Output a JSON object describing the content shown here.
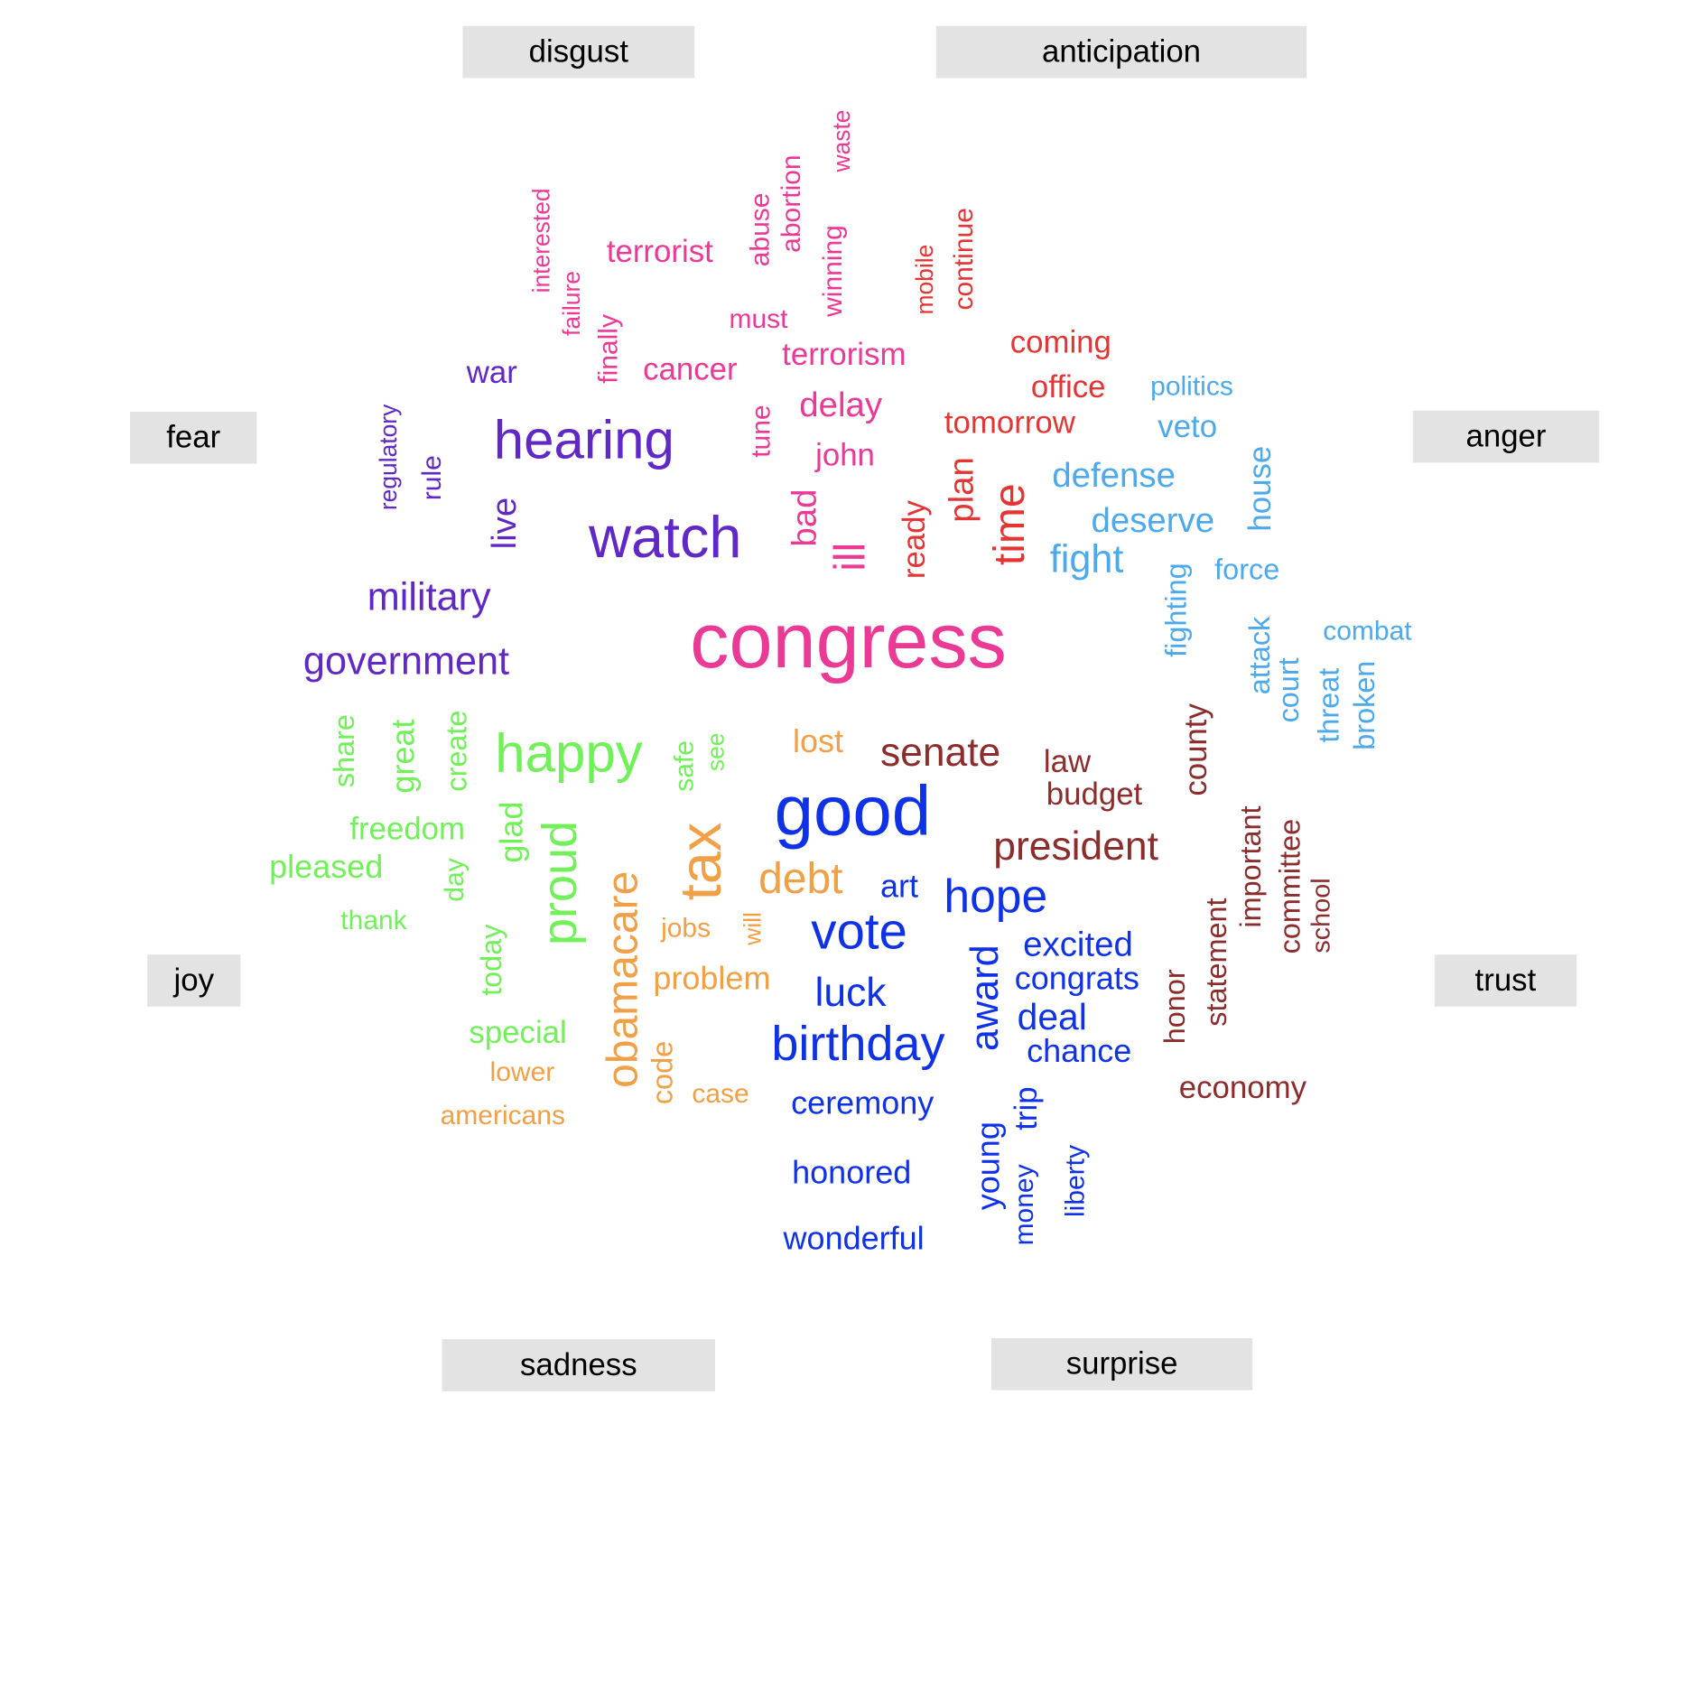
{
  "colors": {
    "disgust": "#ea3a96",
    "anticipation": "#e43535",
    "anger": "#4da9ea",
    "trust": "#8b2d2d",
    "surprise": "#1032e6",
    "sadness": "#f0a046",
    "joy": "#71f05a",
    "fear": "#6028c4",
    "label_bg": "#e3e3e3"
  },
  "labels": {
    "disgust": "disgust",
    "anticipation": "anticipation",
    "fear": "fear",
    "anger": "anger",
    "joy": "joy",
    "trust": "trust",
    "sadness": "sadness",
    "surprise": "surprise"
  },
  "words": [
    {
      "t": "waste",
      "c": "disgust",
      "s": 0.3,
      "v": true
    },
    {
      "t": "abortion",
      "c": "disgust",
      "s": 0.35,
      "v": true
    },
    {
      "t": "abuse",
      "c": "disgust",
      "s": 0.35,
      "v": true
    },
    {
      "t": "interested",
      "c": "disgust",
      "s": 0.3,
      "v": true
    },
    {
      "t": "terrorist",
      "c": "disgust",
      "s": 0.4
    },
    {
      "t": "winning",
      "c": "disgust",
      "s": 0.35,
      "v": true
    },
    {
      "t": "failure",
      "c": "disgust",
      "s": 0.3,
      "v": true
    },
    {
      "t": "must",
      "c": "disgust",
      "s": 0.35
    },
    {
      "t": "finally",
      "c": "disgust",
      "s": 0.35,
      "v": true
    },
    {
      "t": "terrorism",
      "c": "disgust",
      "s": 0.4
    },
    {
      "t": "cancer",
      "c": "disgust",
      "s": 0.4
    },
    {
      "t": "delay",
      "c": "disgust",
      "s": 0.45
    },
    {
      "t": "tune",
      "c": "disgust",
      "s": 0.35,
      "v": true
    },
    {
      "t": "john",
      "c": "disgust",
      "s": 0.4
    },
    {
      "t": "bad",
      "c": "disgust",
      "s": 0.45,
      "v": true
    },
    {
      "t": "ill",
      "c": "disgust",
      "s": 0.55,
      "v": true
    },
    {
      "t": "congress",
      "c": "disgust",
      "s": 1.0
    },
    {
      "t": "mobile",
      "c": "anticipation",
      "s": 0.3,
      "v": true
    },
    {
      "t": "continue",
      "c": "anticipation",
      "s": 0.35,
      "v": true
    },
    {
      "t": "coming",
      "c": "anticipation",
      "s": 0.4
    },
    {
      "t": "office",
      "c": "anticipation",
      "s": 0.4
    },
    {
      "t": "tomorrow",
      "c": "anticipation",
      "s": 0.4
    },
    {
      "t": "plan",
      "c": "anticipation",
      "s": 0.45,
      "v": true
    },
    {
      "t": "ready",
      "c": "anticipation",
      "s": 0.4,
      "v": true
    },
    {
      "t": "time",
      "c": "anticipation",
      "s": 0.55,
      "v": true
    },
    {
      "t": "politics",
      "c": "anger",
      "s": 0.35
    },
    {
      "t": "veto",
      "c": "anger",
      "s": 0.4
    },
    {
      "t": "defense",
      "c": "anger",
      "s": 0.45
    },
    {
      "t": "house",
      "c": "anger",
      "s": 0.4,
      "v": true
    },
    {
      "t": "deserve",
      "c": "anger",
      "s": 0.45
    },
    {
      "t": "fight",
      "c": "anger",
      "s": 0.5
    },
    {
      "t": "force",
      "c": "anger",
      "s": 0.38
    },
    {
      "t": "fighting",
      "c": "anger",
      "s": 0.38,
      "v": true
    },
    {
      "t": "combat",
      "c": "anger",
      "s": 0.35
    },
    {
      "t": "attack",
      "c": "anger",
      "s": 0.38,
      "v": true
    },
    {
      "t": "court",
      "c": "anger",
      "s": 0.38,
      "v": true
    },
    {
      "t": "threat",
      "c": "anger",
      "s": 0.38,
      "v": true
    },
    {
      "t": "broken",
      "c": "anger",
      "s": 0.38,
      "v": true
    },
    {
      "t": "war",
      "c": "fear",
      "s": 0.4
    },
    {
      "t": "regulatory",
      "c": "fear",
      "s": 0.3,
      "v": true
    },
    {
      "t": "rule",
      "c": "fear",
      "s": 0.35,
      "v": true
    },
    {
      "t": "hearing",
      "c": "fear",
      "s": 0.7
    },
    {
      "t": "live",
      "c": "fear",
      "s": 0.45,
      "v": true
    },
    {
      "t": "watch",
      "c": "fear",
      "s": 0.75
    },
    {
      "t": "military",
      "c": "fear",
      "s": 0.5
    },
    {
      "t": "government",
      "c": "fear",
      "s": 0.5
    },
    {
      "t": "share",
      "c": "joy",
      "s": 0.38,
      "v": true
    },
    {
      "t": "great",
      "c": "joy",
      "s": 0.42,
      "v": true
    },
    {
      "t": "create",
      "c": "joy",
      "s": 0.38,
      "v": true
    },
    {
      "t": "happy",
      "c": "joy",
      "s": 0.7
    },
    {
      "t": "safe",
      "c": "joy",
      "s": 0.35,
      "v": true
    },
    {
      "t": "see",
      "c": "joy",
      "s": 0.3,
      "v": true
    },
    {
      "t": "freedom",
      "c": "joy",
      "s": 0.4
    },
    {
      "t": "glad",
      "c": "joy",
      "s": 0.42,
      "v": true
    },
    {
      "t": "pleased",
      "c": "joy",
      "s": 0.42
    },
    {
      "t": "day",
      "c": "joy",
      "s": 0.35,
      "v": true
    },
    {
      "t": "proud",
      "c": "joy",
      "s": 0.62,
      "v": true
    },
    {
      "t": "thank",
      "c": "joy",
      "s": 0.35
    },
    {
      "t": "today",
      "c": "joy",
      "s": 0.38,
      "v": true
    },
    {
      "t": "special",
      "c": "joy",
      "s": 0.4
    },
    {
      "t": "lost",
      "c": "sadness",
      "s": 0.42
    },
    {
      "t": "tax",
      "c": "sadness",
      "s": 0.75,
      "v": true
    },
    {
      "t": "debt",
      "c": "sadness",
      "s": 0.55
    },
    {
      "t": "jobs",
      "c": "sadness",
      "s": 0.35
    },
    {
      "t": "will",
      "c": "sadness",
      "s": 0.3,
      "v": true
    },
    {
      "t": "obamacare",
      "c": "sadness",
      "s": 0.55,
      "v": true
    },
    {
      "t": "problem",
      "c": "sadness",
      "s": 0.42
    },
    {
      "t": "code",
      "c": "sadness",
      "s": 0.38,
      "v": true
    },
    {
      "t": "lower",
      "c": "sadness",
      "s": 0.35
    },
    {
      "t": "case",
      "c": "sadness",
      "s": 0.35
    },
    {
      "t": "americans",
      "c": "sadness",
      "s": 0.35
    },
    {
      "t": "senate",
      "c": "trust",
      "s": 0.52
    },
    {
      "t": "law",
      "c": "trust",
      "s": 0.4
    },
    {
      "t": "county",
      "c": "trust",
      "s": 0.4,
      "v": true
    },
    {
      "t": "budget",
      "c": "trust",
      "s": 0.4
    },
    {
      "t": "president",
      "c": "trust",
      "s": 0.52
    },
    {
      "t": "important",
      "c": "trust",
      "s": 0.38,
      "v": true
    },
    {
      "t": "committee",
      "c": "trust",
      "s": 0.38,
      "v": true
    },
    {
      "t": "school",
      "c": "trust",
      "s": 0.33,
      "v": true
    },
    {
      "t": "statement",
      "c": "trust",
      "s": 0.38,
      "v": true
    },
    {
      "t": "honor",
      "c": "trust",
      "s": 0.38,
      "v": true
    },
    {
      "t": "economy",
      "c": "trust",
      "s": 0.4
    },
    {
      "t": "good",
      "c": "surprise",
      "s": 0.9
    },
    {
      "t": "art",
      "c": "surprise",
      "s": 0.42
    },
    {
      "t": "hope",
      "c": "surprise",
      "s": 0.6
    },
    {
      "t": "vote",
      "c": "surprise",
      "s": 0.65
    },
    {
      "t": "excited",
      "c": "surprise",
      "s": 0.45
    },
    {
      "t": "congrats",
      "c": "surprise",
      "s": 0.42
    },
    {
      "t": "luck",
      "c": "surprise",
      "s": 0.52
    },
    {
      "t": "award",
      "c": "surprise",
      "s": 0.5,
      "v": true
    },
    {
      "t": "deal",
      "c": "surprise",
      "s": 0.47
    },
    {
      "t": "chance",
      "c": "surprise",
      "s": 0.42
    },
    {
      "t": "birthday",
      "c": "surprise",
      "s": 0.62
    },
    {
      "t": "ceremony",
      "c": "surprise",
      "s": 0.42
    },
    {
      "t": "trip",
      "c": "surprise",
      "s": 0.4,
      "v": true
    },
    {
      "t": "young",
      "c": "surprise",
      "s": 0.42,
      "v": true
    },
    {
      "t": "money",
      "c": "surprise",
      "s": 0.35,
      "v": true
    },
    {
      "t": "liberty",
      "c": "surprise",
      "s": 0.35,
      "v": true
    },
    {
      "t": "honored",
      "c": "surprise",
      "s": 0.42
    },
    {
      "t": "wonderful",
      "c": "surprise",
      "s": 0.42
    }
  ]
}
